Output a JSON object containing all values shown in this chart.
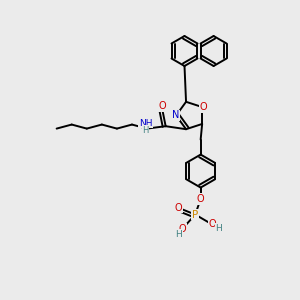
{
  "background_color": "#ebebeb",
  "figsize": [
    3.0,
    3.0
  ],
  "dpi": 100,
  "colors": {
    "C": "#000000",
    "N": "#0000cc",
    "O": "#cc0000",
    "P": "#cc8800",
    "H": "#408080",
    "bond": "#000000"
  },
  "layout": {
    "xlim": [
      0,
      10
    ],
    "ylim": [
      0,
      10
    ]
  }
}
